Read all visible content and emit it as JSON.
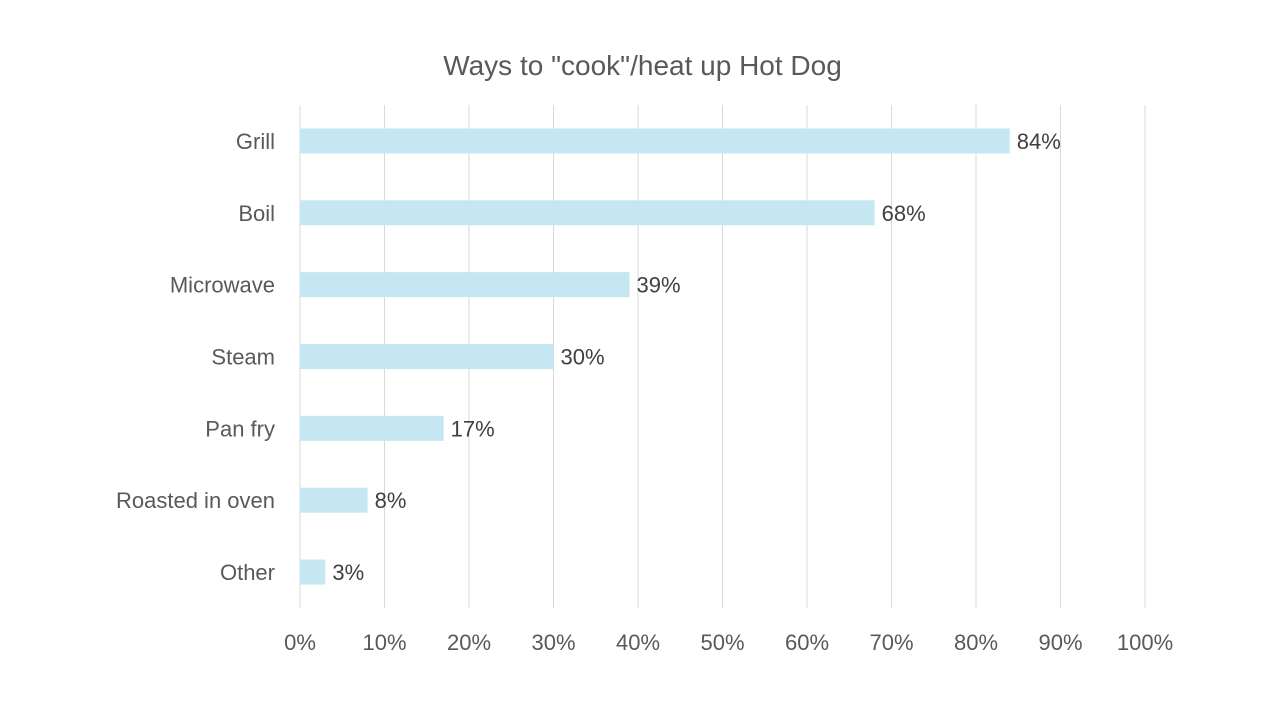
{
  "chart_data": {
    "type": "bar",
    "orientation": "horizontal",
    "title": "Ways to \"cook\"/heat up Hot Dog",
    "categories": [
      "Grill",
      "Boil",
      "Microwave",
      "Steam",
      "Pan fry",
      "Roasted in oven",
      "Other"
    ],
    "values": [
      84,
      68,
      39,
      30,
      17,
      8,
      3
    ],
    "data_labels": [
      "84%",
      "68%",
      "39%",
      "30%",
      "17%",
      "8%",
      "3%"
    ],
    "xlim": [
      0,
      100
    ],
    "x_ticks": [
      0,
      10,
      20,
      30,
      40,
      50,
      60,
      70,
      80,
      90,
      100
    ],
    "x_tick_labels": [
      "0%",
      "10%",
      "20%",
      "30%",
      "40%",
      "50%",
      "60%",
      "70%",
      "80%",
      "90%",
      "100%"
    ],
    "xlabel": "",
    "ylabel": "",
    "grid": "vertical",
    "legend": "none",
    "bar_color": "#c5e7f1",
    "grid_color": "#d9d9d9",
    "text_color": "#595959"
  }
}
